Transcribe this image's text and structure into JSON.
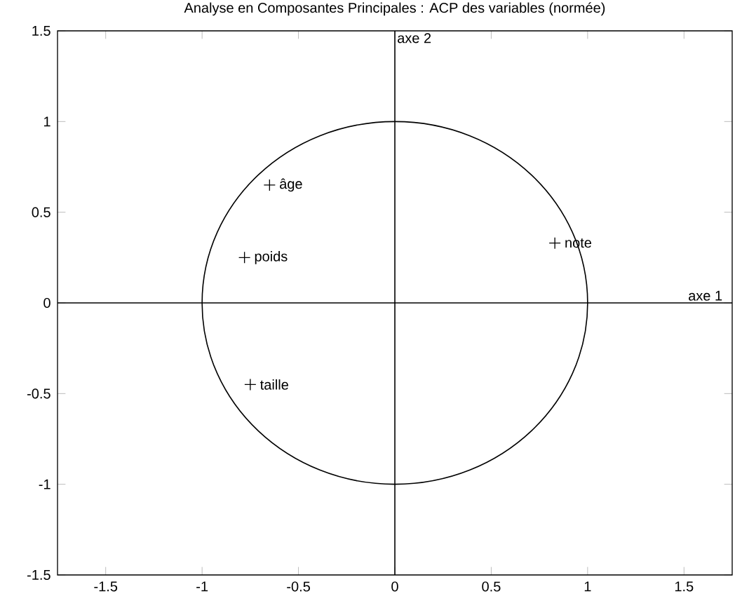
{
  "chart_data": {
    "type": "scatter",
    "title": "Analyse en Composantes Principales : ACP des variables (normée)",
    "xlim": [
      -1.75,
      1.75
    ],
    "ylim": [
      -1.5,
      1.5
    ],
    "xticks": [
      -1.5,
      -1,
      -0.5,
      0,
      0.5,
      1,
      1.5
    ],
    "yticks": [
      -1.5,
      -1,
      -0.5,
      0,
      0.5,
      1,
      1.5
    ],
    "grid": false,
    "series": [
      {
        "color": "#000000",
        "marker": "cross",
        "x": [
          -0.65,
          -0.78,
          -0.75,
          0.83
        ],
        "values": [
          0.65,
          0.25,
          -0.45,
          0.33
        ]
      }
    ],
    "annotations": [
      {
        "text": "âge",
        "x": -0.65,
        "y": 0.65
      },
      {
        "text": "poids",
        "x": -0.78,
        "y": 0.25
      },
      {
        "text": "taille",
        "x": -0.75,
        "y": -0.45
      },
      {
        "text": "note",
        "x": 0.83,
        "y": 0.33
      }
    ],
    "ref_lines": [
      {
        "axis": "x",
        "value": 0,
        "label": "axe 2",
        "color": "#000000"
      },
      {
        "axis": "y",
        "value": 0,
        "label": "axe 1",
        "color": "#000000"
      }
    ]
  }
}
